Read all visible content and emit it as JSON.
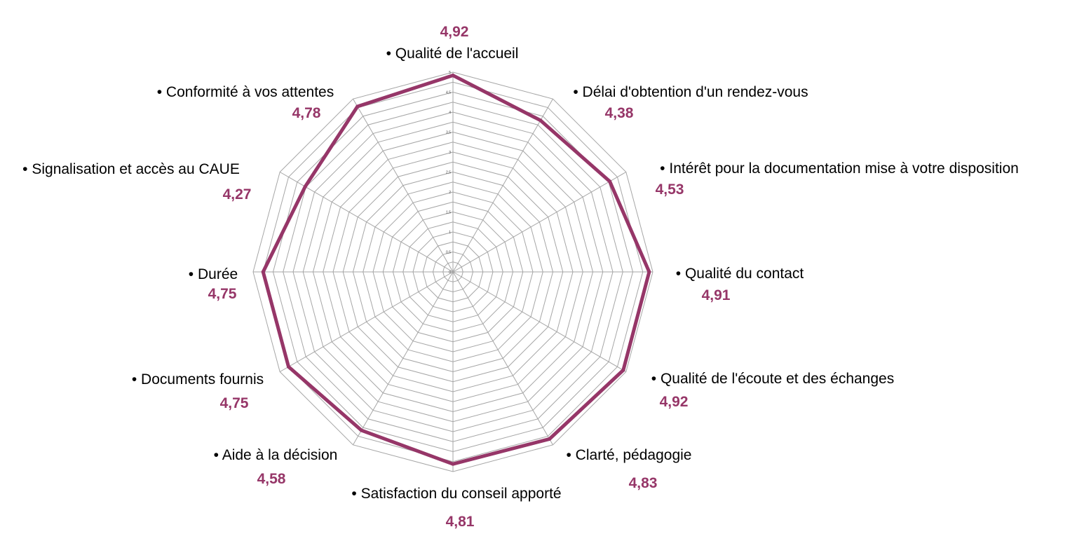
{
  "chart_data": {
    "type": "radar",
    "title": "",
    "categories": [
      "• Qualité de l'accueil",
      "• Délai d'obtention d'un rendez-vous",
      "• Intérêt pour la documentation mise à votre disposition",
      "• Qualité du contact",
      "• Qualité de l'écoute et des échanges",
      "• Clarté, pédagogie",
      "• Satisfaction du conseil apporté",
      "• Aide à la décision",
      "• Documents fournis",
      "• Durée",
      "• Signalisation et accès au CAUE",
      "• Conformité à vos attentes"
    ],
    "value_labels": [
      "4,92",
      "4,38",
      "4,53",
      "4,91",
      "4,92",
      "4,83",
      "4,81",
      "4,58",
      "4,75",
      "4,75",
      "4,27",
      "4,78"
    ],
    "series": [
      {
        "values": [
          4.92,
          4.38,
          4.53,
          4.91,
          4.92,
          4.83,
          4.81,
          4.58,
          4.75,
          4.75,
          4.27,
          4.78
        ]
      }
    ],
    "ticks": [
      "0",
      "0,5",
      "1",
      "1,5",
      "2",
      "2,5",
      "3",
      "3,5",
      "4",
      "4,5",
      "5"
    ],
    "rlim": [
      0,
      5
    ],
    "grid": true,
    "legend": "none",
    "colors": {
      "series": "#963668",
      "value_label": "#963668",
      "grid": "#a6a6a6"
    }
  }
}
